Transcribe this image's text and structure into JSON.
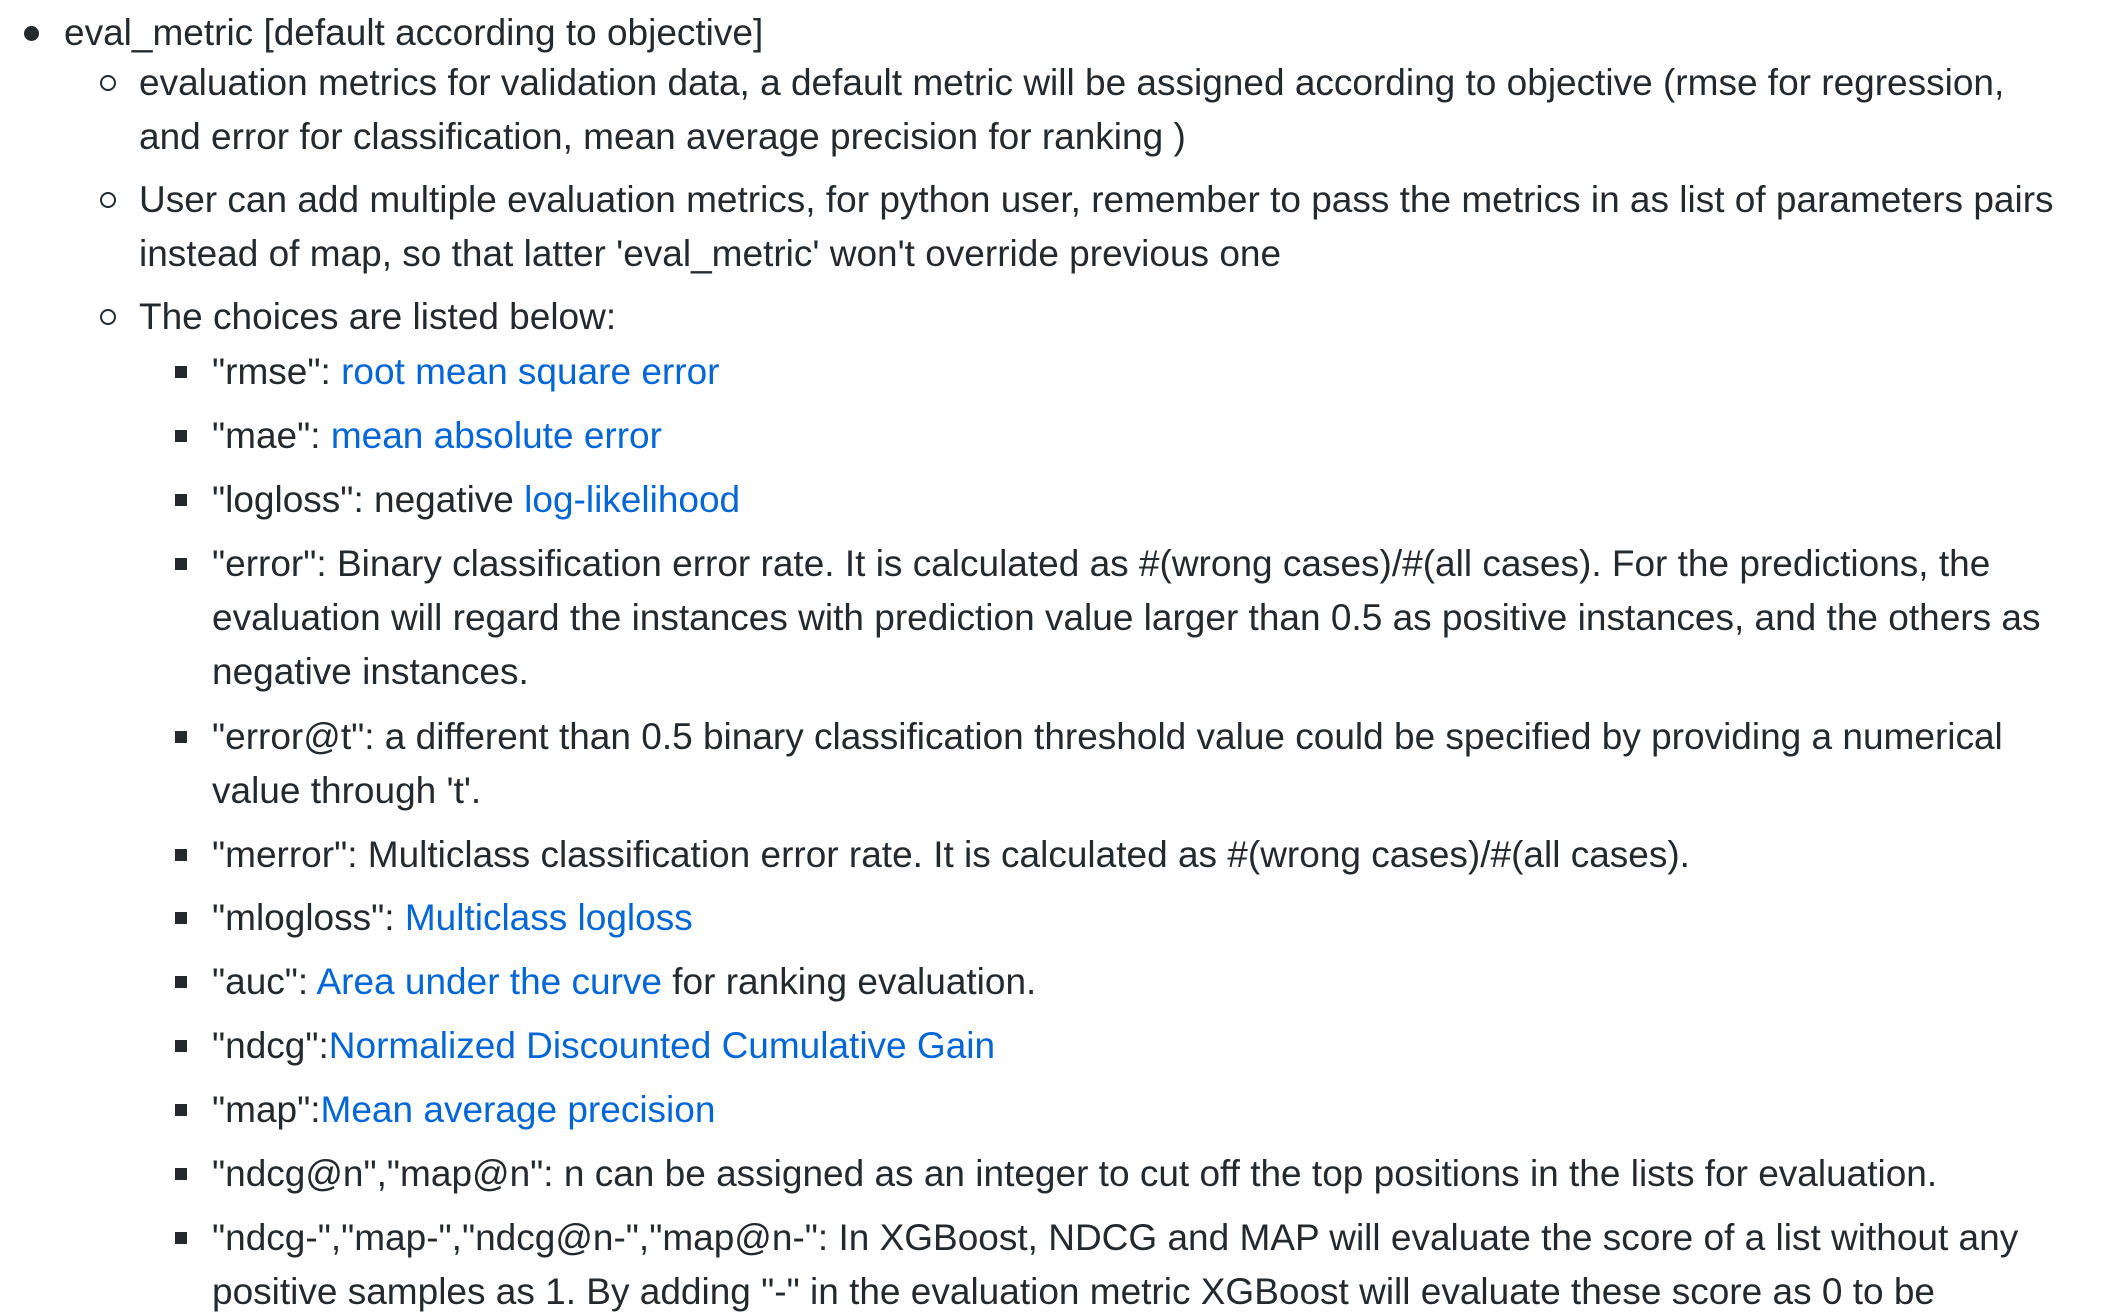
{
  "param": {
    "title": "eval_metric [default according to objective]",
    "sub_items": [
      {
        "lines": [
          "evaluation metrics for validation data, a default metric will be assigned according to objective (rmse for regression,",
          "and error for classification, mean average precision for ranking )"
        ]
      },
      {
        "lines": [
          "User can add multiple evaluation metrics, for python user, remember to pass the metrics in as list of parameters pairs",
          "instead of map, so that latter 'eval_metric' won't override previous one"
        ]
      },
      {
        "lines": [
          "The choices are listed below:"
        ]
      }
    ],
    "choices": [
      {
        "key": "\"rmse\": ",
        "link": "root mean square error",
        "after": ""
      },
      {
        "key": "\"mae\": ",
        "link": "mean absolute error",
        "after": ""
      },
      {
        "key": "\"logloss\": negative ",
        "link": "log-likelihood",
        "after": ""
      },
      {
        "lines": [
          "\"error\": Binary classification error rate. It is calculated as #(wrong cases)/#(all cases). For the predictions, the",
          "evaluation will regard the instances with prediction value larger than 0.5 as positive instances, and the others as",
          "negative instances."
        ]
      },
      {
        "lines": [
          "\"error@t\": a different than 0.5 binary classification threshold value could be specified by providing a numerical",
          "value through 't'."
        ]
      },
      {
        "lines": [
          "\"merror\": Multiclass classification error rate. It is calculated as #(wrong cases)/#(all cases)."
        ]
      },
      {
        "key": "\"mlogloss\": ",
        "link": "Multiclass logloss",
        "after": ""
      },
      {
        "key": "\"auc\": ",
        "link": "Area under the curve",
        "after": " for ranking evaluation."
      },
      {
        "key": "\"ndcg\":",
        "link": "Normalized Discounted Cumulative Gain",
        "after": ""
      },
      {
        "key": "\"map\":",
        "link": "Mean average precision",
        "after": ""
      },
      {
        "lines": [
          "\"ndcg@n\",\"map@n\": n can be assigned as an integer to cut off the top positions in the lists for evaluation."
        ]
      },
      {
        "lines": [
          "\"ndcg-\",\"map-\",\"ndcg@n-\",\"map@n-\": In XGBoost, NDCG and MAP will evaluate the score of a list without any",
          "positive samples as 1. By adding \"-\" in the evaluation metric XGBoost will evaluate these score as 0 to be"
        ]
      }
    ]
  },
  "colors": {
    "text": "#24292e",
    "link": "#0366d6",
    "background": "#ffffff"
  },
  "icons": {
    "level1": "bullet-disc-icon",
    "level2": "bullet-circle-icon",
    "level3": "bullet-square-icon"
  }
}
